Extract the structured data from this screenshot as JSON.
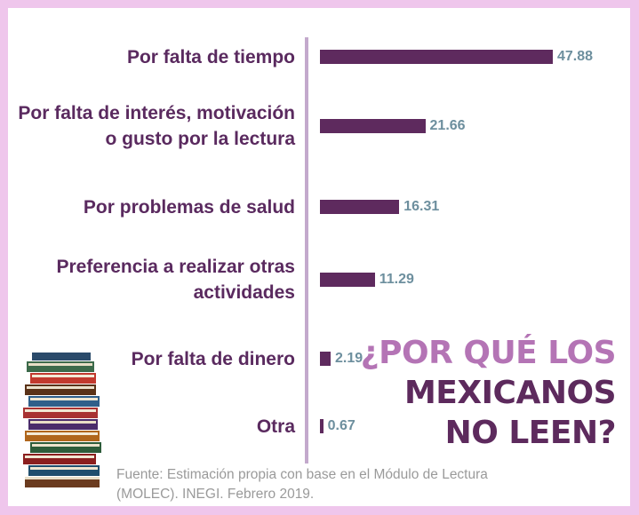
{
  "chart_data": {
    "type": "bar",
    "orientation": "horizontal",
    "categories": [
      [
        "Por falta de tiempo"
      ],
      [
        "Por falta de interés, motivación",
        "o gusto por la lectura"
      ],
      [
        "Por problemas de salud"
      ],
      [
        "Preferencia a realizar otras",
        "actividades"
      ],
      [
        "Por falta de dinero"
      ],
      [
        "Otra"
      ]
    ],
    "values": [
      47.88,
      21.66,
      16.31,
      11.29,
      2.19,
      0.67
    ],
    "value_labels": [
      "47.88",
      "21.66",
      "16.31",
      "11.29",
      "2.19",
      "0.67"
    ],
    "xlim": [
      0,
      50
    ],
    "grid": false,
    "legend": false
  },
  "headline": {
    "line1": "¿POR QUÉ LOS",
    "line2": "MEXICANOS",
    "line3": "NO LEEN?"
  },
  "source": {
    "line1": "Fuente: Estimación propia con base en el Módulo de Lectura",
    "line2": "(MOLEC). INEGI.  Febrero 2019."
  },
  "illustration": {
    "icon": "stack-of-books-icon"
  },
  "colors": {
    "frame": "#efc6ec",
    "bar": "#5e2a5e",
    "category_text": "#5a2a5f",
    "value_text": "#6d8f9e",
    "axis": "#c3a9cc",
    "headline_light": "#b474b5",
    "headline_dark": "#5d2a5d",
    "source_text": "#9a9a9a"
  }
}
